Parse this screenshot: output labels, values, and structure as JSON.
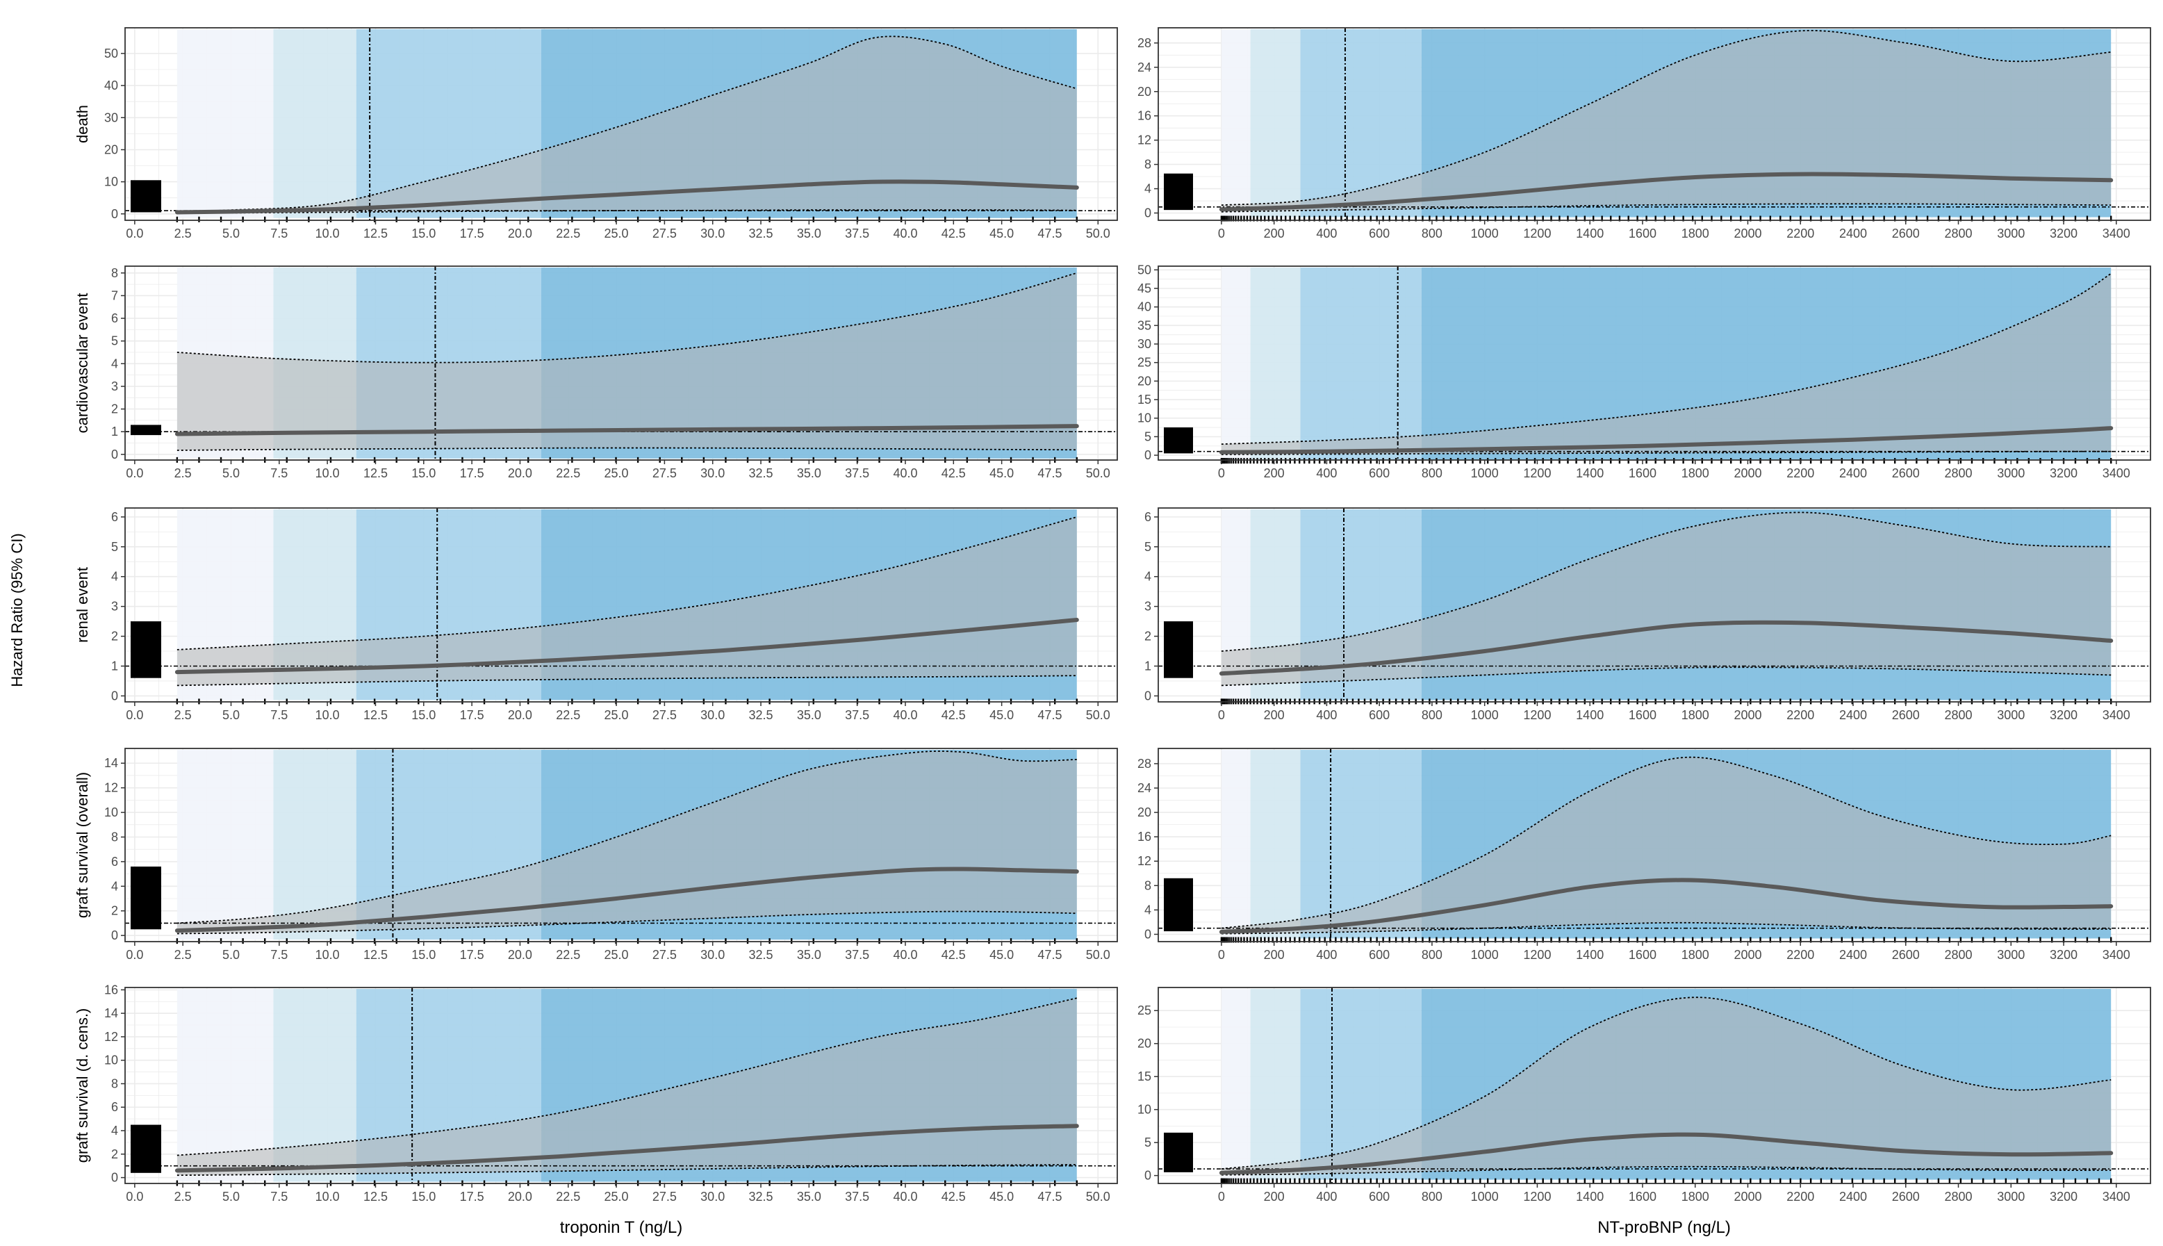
{
  "figure": {
    "y_axis_title": "Hazard Ratio (95% CI)",
    "x_axis_titles": [
      "troponin T (ng/L)",
      "NT-proBNP (ng/L)"
    ]
  },
  "colors": {
    "band1": "#f1f4fb",
    "band2": "#d4e8f1",
    "band3": "#a7d3eb",
    "band4": "#7fbde0",
    "ci_fill": "#b5b5b5",
    "hr_line": "#5a5a5a",
    "grid": "#ebebeb",
    "rug": "#000000"
  },
  "chart_data": [
    {
      "type": "line",
      "row": 0,
      "col": 0,
      "title": "",
      "ylabel": "death",
      "xlabel": "",
      "xlim": [
        -0.5,
        51
      ],
      "ylim": [
        -2,
        58
      ],
      "xticks": [
        "0.0",
        "2.5",
        "5.0",
        "7.5",
        "10.0",
        "12.5",
        "15.0",
        "17.5",
        "20.0",
        "22.5",
        "25.0",
        "27.5",
        "30.0",
        "32.5",
        "35.0",
        "37.5",
        "40.0",
        "42.5",
        "45.0",
        "47.5",
        "50.0"
      ],
      "xtick_values": [
        0,
        2.5,
        5,
        7.5,
        10,
        12.5,
        15,
        17.5,
        20,
        22.5,
        25,
        27.5,
        30,
        32.5,
        35,
        37.5,
        40,
        42.5,
        45,
        47.5,
        50
      ],
      "yticks": [
        0,
        10,
        20,
        30,
        40,
        50
      ],
      "bands": [
        2.2,
        7.2,
        11.5,
        21.1,
        48.9
      ],
      "ref_x": 12.2,
      "ref_y": 1,
      "x": [
        2.2,
        5,
        10,
        15,
        20,
        25,
        30,
        35,
        38.5,
        42,
        45,
        48.9
      ],
      "hr": [
        0.5,
        0.7,
        1.4,
        2.7,
        4.4,
        6.0,
        7.6,
        9.2,
        10.0,
        9.9,
        9.2,
        8.2
      ],
      "lower": [
        0.2,
        0.3,
        0.5,
        0.7,
        0.9,
        1.0,
        1.1,
        1.2,
        1.2,
        1.2,
        1.2,
        1.1
      ],
      "upper": [
        0.8,
        1.2,
        3.0,
        10.0,
        18.0,
        27.0,
        37.0,
        47.0,
        55.0,
        53.0,
        46.0,
        39.0
      ],
      "rug_bar": [
        0.5,
        10.5
      ]
    },
    {
      "type": "line",
      "row": 0,
      "col": 1,
      "title": "",
      "ylabel": "",
      "xlabel": "",
      "xlim": [
        -240,
        3530
      ],
      "ylim": [
        -1.2,
        30.5
      ],
      "xticks": [
        "0",
        "200",
        "400",
        "600",
        "800",
        "1000",
        "1200",
        "1400",
        "1600",
        "1800",
        "2000",
        "2200",
        "2400",
        "2600",
        "2800",
        "3000",
        "3200",
        "3400"
      ],
      "xtick_values": [
        0,
        200,
        400,
        600,
        800,
        1000,
        1200,
        1400,
        1600,
        1800,
        2000,
        2200,
        2400,
        2600,
        2800,
        3000,
        3200,
        3400
      ],
      "yticks": [
        0,
        4,
        8,
        12,
        16,
        20,
        24,
        28
      ],
      "bands": [
        0,
        110,
        300,
        760,
        3380
      ],
      "ref_x": 470,
      "ref_y": 1,
      "x": [
        0,
        300,
        600,
        1000,
        1400,
        1800,
        2200,
        2600,
        3000,
        3380
      ],
      "hr": [
        0.6,
        1.0,
        1.7,
        3.0,
        4.6,
        5.9,
        6.4,
        6.2,
        5.7,
        5.4
      ],
      "lower": [
        0.2,
        0.4,
        0.6,
        0.9,
        1.2,
        1.4,
        1.5,
        1.5,
        1.4,
        1.3
      ],
      "upper": [
        1.3,
        2.0,
        4.5,
        10.0,
        18.0,
        26.0,
        30.0,
        28.0,
        25.0,
        26.5
      ],
      "rug_bar": [
        0.5,
        6.5
      ]
    },
    {
      "type": "line",
      "row": 1,
      "col": 0,
      "title": "",
      "ylabel": "cardiovascular event",
      "xlabel": "",
      "xlim": [
        -0.5,
        51
      ],
      "ylim": [
        -0.25,
        8.3
      ],
      "xticks": [
        "0.0",
        "2.5",
        "5.0",
        "7.5",
        "10.0",
        "12.5",
        "15.0",
        "17.5",
        "20.0",
        "22.5",
        "25.0",
        "27.5",
        "30.0",
        "32.5",
        "35.0",
        "37.5",
        "40.0",
        "42.5",
        "45.0",
        "47.5",
        "50.0"
      ],
      "xtick_values": [
        0,
        2.5,
        5,
        7.5,
        10,
        12.5,
        15,
        17.5,
        20,
        22.5,
        25,
        27.5,
        30,
        32.5,
        35,
        37.5,
        40,
        42.5,
        45,
        47.5,
        50
      ],
      "yticks": [
        0,
        1,
        2,
        3,
        4,
        5,
        6,
        7,
        8
      ],
      "bands": [
        2.2,
        7.2,
        11.5,
        21.1,
        48.9
      ],
      "ref_x": 15.6,
      "ref_y": 1,
      "x": [
        2.2,
        8,
        15,
        22,
        30,
        38,
        44,
        48.9
      ],
      "hr": [
        0.9,
        0.95,
        1.0,
        1.05,
        1.1,
        1.15,
        1.2,
        1.25
      ],
      "lower": [
        0.18,
        0.22,
        0.25,
        0.28,
        0.28,
        0.25,
        0.22,
        0.2
      ],
      "upper": [
        4.5,
        4.2,
        4.05,
        4.2,
        4.8,
        5.8,
        6.8,
        8.0
      ],
      "rug_bar": [
        0.85,
        1.3
      ]
    },
    {
      "type": "line",
      "row": 1,
      "col": 1,
      "title": "",
      "ylabel": "",
      "xlabel": "",
      "xlim": [
        -240,
        3530
      ],
      "ylim": [
        -1.3,
        51
      ],
      "xticks": [
        "0",
        "200",
        "400",
        "600",
        "800",
        "1000",
        "1200",
        "1400",
        "1600",
        "1800",
        "2000",
        "2200",
        "2400",
        "2600",
        "2800",
        "3000",
        "3200",
        "3400"
      ],
      "xtick_values": [
        0,
        200,
        400,
        600,
        800,
        1000,
        1200,
        1400,
        1600,
        1800,
        2000,
        2200,
        2400,
        2600,
        2800,
        3000,
        3200,
        3400
      ],
      "yticks": [
        0,
        5,
        10,
        15,
        20,
        25,
        30,
        35,
        40,
        45,
        50
      ],
      "bands": [
        0,
        110,
        300,
        760,
        3380
      ],
      "ref_x": 670,
      "ref_y": 1,
      "x": [
        0,
        400,
        800,
        1200,
        1600,
        2000,
        2400,
        2800,
        3200,
        3380
      ],
      "hr": [
        0.8,
        1.0,
        1.4,
        1.9,
        2.5,
        3.3,
        4.2,
        5.3,
        6.6,
        7.3
      ],
      "lower": [
        0.2,
        0.3,
        0.4,
        0.5,
        0.6,
        0.7,
        0.8,
        0.9,
        1.0,
        1.0
      ],
      "upper": [
        3.0,
        4.0,
        5.5,
        8.0,
        11.0,
        15.0,
        21.0,
        29.0,
        41.0,
        49.0
      ],
      "rug_bar": [
        0.5,
        7.5
      ]
    },
    {
      "type": "line",
      "row": 2,
      "col": 0,
      "title": "",
      "ylabel": "renal event",
      "xlabel": "",
      "xlim": [
        -0.5,
        51
      ],
      "ylim": [
        -0.2,
        6.3
      ],
      "xticks": [
        "0.0",
        "2.5",
        "5.0",
        "7.5",
        "10.0",
        "12.5",
        "15.0",
        "17.5",
        "20.0",
        "22.5",
        "25.0",
        "27.5",
        "30.0",
        "32.5",
        "35.0",
        "37.5",
        "40.0",
        "42.5",
        "45.0",
        "47.5",
        "50.0"
      ],
      "xtick_values": [
        0,
        2.5,
        5,
        7.5,
        10,
        12.5,
        15,
        17.5,
        20,
        22.5,
        25,
        27.5,
        30,
        32.5,
        35,
        37.5,
        40,
        42.5,
        45,
        47.5,
        50
      ],
      "yticks": [
        0,
        1,
        2,
        3,
        4,
        5,
        6
      ],
      "bands": [
        2.2,
        7.2,
        11.5,
        21.1,
        48.9
      ],
      "ref_x": 15.7,
      "ref_y": 1,
      "x": [
        2.2,
        8,
        15,
        22,
        30,
        38,
        44,
        48.9
      ],
      "hr": [
        0.8,
        0.88,
        1.0,
        1.2,
        1.5,
        1.9,
        2.25,
        2.55
      ],
      "lower": [
        0.35,
        0.42,
        0.5,
        0.55,
        0.6,
        0.63,
        0.65,
        0.68
      ],
      "upper": [
        1.55,
        1.75,
        2.0,
        2.4,
        3.1,
        4.1,
        5.1,
        6.0
      ],
      "rug_bar": [
        0.6,
        2.5
      ]
    },
    {
      "type": "line",
      "row": 2,
      "col": 1,
      "title": "",
      "ylabel": "",
      "xlabel": "",
      "xlim": [
        -240,
        3530
      ],
      "ylim": [
        -0.2,
        6.3
      ],
      "xticks": [
        "0",
        "200",
        "400",
        "600",
        "800",
        "1000",
        "1200",
        "1400",
        "1600",
        "1800",
        "2000",
        "2200",
        "2400",
        "2600",
        "2800",
        "3000",
        "3200",
        "3400"
      ],
      "xtick_values": [
        0,
        200,
        400,
        600,
        800,
        1000,
        1200,
        1400,
        1600,
        1800,
        2000,
        2200,
        2400,
        2600,
        2800,
        3000,
        3200,
        3400
      ],
      "yticks": [
        0,
        1,
        2,
        3,
        4,
        5,
        6
      ],
      "bands": [
        0,
        110,
        300,
        760,
        3380
      ],
      "ref_x": 465,
      "ref_y": 1,
      "x": [
        0,
        300,
        600,
        1000,
        1400,
        1800,
        2200,
        2600,
        3000,
        3380
      ],
      "hr": [
        0.75,
        0.9,
        1.1,
        1.5,
        2.0,
        2.4,
        2.45,
        2.3,
        2.1,
        1.85
      ],
      "lower": [
        0.35,
        0.45,
        0.55,
        0.7,
        0.85,
        0.95,
        0.95,
        0.9,
        0.8,
        0.7
      ],
      "upper": [
        1.5,
        1.75,
        2.2,
        3.2,
        4.6,
        5.7,
        6.15,
        5.7,
        5.1,
        5.0
      ],
      "rug_bar": [
        0.6,
        2.5
      ]
    },
    {
      "type": "line",
      "row": 3,
      "col": 0,
      "title": "",
      "ylabel": "graft survival (overall)",
      "xlabel": "",
      "xlim": [
        -0.5,
        51
      ],
      "ylim": [
        -0.5,
        15.2
      ],
      "xticks": [
        "0.0",
        "2.5",
        "5.0",
        "7.5",
        "10.0",
        "12.5",
        "15.0",
        "17.5",
        "20.0",
        "22.5",
        "25.0",
        "27.5",
        "30.0",
        "32.5",
        "35.0",
        "37.5",
        "40.0",
        "42.5",
        "45.0",
        "47.5",
        "50.0"
      ],
      "xtick_values": [
        0,
        2.5,
        5,
        7.5,
        10,
        12.5,
        15,
        17.5,
        20,
        22.5,
        25,
        27.5,
        30,
        32.5,
        35,
        37.5,
        40,
        42.5,
        45,
        47.5,
        50
      ],
      "yticks": [
        0,
        2,
        4,
        6,
        8,
        10,
        12,
        14
      ],
      "bands": [
        2.2,
        7.2,
        11.5,
        21.1,
        48.9
      ],
      "ref_x": 13.4,
      "ref_y": 1,
      "x": [
        2.2,
        6,
        10,
        15,
        20,
        25,
        30,
        35,
        40,
        43,
        46,
        48.9
      ],
      "hr": [
        0.4,
        0.6,
        0.9,
        1.5,
        2.2,
        3.0,
        3.9,
        4.7,
        5.3,
        5.4,
        5.3,
        5.2
      ],
      "lower": [
        0.15,
        0.22,
        0.35,
        0.55,
        0.8,
        1.1,
        1.4,
        1.7,
        1.9,
        1.95,
        1.9,
        1.8
      ],
      "upper": [
        1.0,
        1.4,
        2.2,
        3.8,
        5.5,
        8.0,
        10.8,
        13.5,
        14.8,
        14.9,
        14.2,
        14.3
      ],
      "rug_bar": [
        0.5,
        5.6
      ]
    },
    {
      "type": "line",
      "row": 3,
      "col": 1,
      "title": "",
      "ylabel": "",
      "xlabel": "",
      "xlim": [
        -240,
        3530
      ],
      "ylim": [
        -1.2,
        30.5
      ],
      "xticks": [
        "0",
        "200",
        "400",
        "600",
        "800",
        "1000",
        "1200",
        "1400",
        "1600",
        "1800",
        "2000",
        "2200",
        "2400",
        "2600",
        "2800",
        "3000",
        "3200",
        "3400"
      ],
      "xtick_values": [
        0,
        200,
        400,
        600,
        800,
        1000,
        1200,
        1400,
        1600,
        1800,
        2000,
        2200,
        2400,
        2600,
        2800,
        3000,
        3200,
        3400
      ],
      "yticks": [
        0,
        4,
        8,
        12,
        16,
        20,
        24,
        28
      ],
      "bands": [
        0,
        110,
        300,
        760,
        3380
      ],
      "ref_x": 415,
      "ref_y": 1,
      "x": [
        0,
        300,
        600,
        1000,
        1400,
        1750,
        2100,
        2500,
        2900,
        3200,
        3380
      ],
      "hr": [
        0.4,
        1.0,
        2.2,
        4.8,
        7.8,
        8.9,
        7.8,
        5.6,
        4.5,
        4.5,
        4.6
      ],
      "lower": [
        0.1,
        0.25,
        0.5,
        1.0,
        1.6,
        1.9,
        1.6,
        1.1,
        0.9,
        0.85,
        0.85
      ],
      "upper": [
        1.0,
        2.5,
        5.5,
        13.0,
        23.5,
        29.0,
        26.0,
        19.5,
        15.5,
        14.8,
        16.2
      ],
      "rug_bar": [
        0.5,
        9.2
      ]
    },
    {
      "type": "line",
      "row": 4,
      "col": 0,
      "title": "",
      "ylabel": "graft survival (d. cens.)",
      "xlabel": "troponin T (ng/L)",
      "xlim": [
        -0.5,
        51
      ],
      "ylim": [
        -0.5,
        16.2
      ],
      "xticks": [
        "0.0",
        "2.5",
        "5.0",
        "7.5",
        "10.0",
        "12.5",
        "15.0",
        "17.5",
        "20.0",
        "22.5",
        "25.0",
        "27.5",
        "30.0",
        "32.5",
        "35.0",
        "37.5",
        "40.0",
        "42.5",
        "45.0",
        "47.5",
        "50.0"
      ],
      "xtick_values": [
        0,
        2.5,
        5,
        7.5,
        10,
        12.5,
        15,
        17.5,
        20,
        22.5,
        25,
        27.5,
        30,
        32.5,
        35,
        37.5,
        40,
        42.5,
        45,
        47.5,
        50
      ],
      "yticks": [
        0,
        2,
        4,
        6,
        8,
        10,
        12,
        14,
        16
      ],
      "bands": [
        2.2,
        7.2,
        11.5,
        21.1,
        48.9
      ],
      "ref_x": 14.4,
      "ref_y": 1,
      "x": [
        2.2,
        8,
        15,
        22,
        30,
        38,
        44,
        48.9
      ],
      "hr": [
        0.6,
        0.8,
        1.2,
        1.8,
        2.7,
        3.7,
        4.2,
        4.4
      ],
      "lower": [
        0.2,
        0.28,
        0.4,
        0.55,
        0.75,
        0.95,
        1.05,
        1.1
      ],
      "upper": [
        1.9,
        2.6,
        3.8,
        5.5,
        8.5,
        11.8,
        13.5,
        15.3
      ],
      "rug_bar": [
        0.4,
        4.5
      ]
    },
    {
      "type": "line",
      "row": 4,
      "col": 1,
      "title": "",
      "ylabel": "",
      "xlabel": "NT-proBNP (ng/L)",
      "xlim": [
        -240,
        3530
      ],
      "ylim": [
        -1.2,
        28.5
      ],
      "xticks": [
        "0",
        "200",
        "400",
        "600",
        "800",
        "1000",
        "1200",
        "1400",
        "1600",
        "1800",
        "2000",
        "2200",
        "2400",
        "2600",
        "2800",
        "3000",
        "3200",
        "3400"
      ],
      "xtick_values": [
        0,
        200,
        400,
        600,
        800,
        1000,
        1200,
        1400,
        1600,
        1800,
        2000,
        2200,
        2400,
        2600,
        2800,
        3000,
        3200,
        3400
      ],
      "yticks": [
        0,
        5,
        10,
        15,
        20,
        25
      ],
      "bands": [
        0,
        110,
        300,
        760,
        3380
      ],
      "ref_x": 420,
      "ref_y": 1,
      "x": [
        0,
        300,
        600,
        1000,
        1400,
        1800,
        2200,
        2600,
        3000,
        3380
      ],
      "hr": [
        0.4,
        0.9,
        1.8,
        3.6,
        5.5,
        6.2,
        5.0,
        3.7,
        3.2,
        3.4
      ],
      "lower": [
        0.1,
        0.22,
        0.45,
        0.8,
        1.2,
        1.35,
        1.2,
        0.95,
        0.8,
        0.8
      ],
      "upper": [
        1.0,
        2.3,
        5.0,
        12.0,
        22.5,
        27.0,
        23.0,
        16.5,
        13.0,
        14.5
      ],
      "rug_bar": [
        0.5,
        6.5
      ]
    }
  ]
}
